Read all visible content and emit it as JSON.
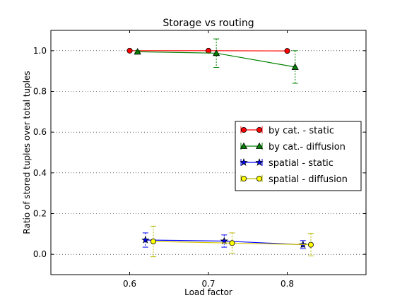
{
  "chart_data": {
    "type": "line",
    "title": "Storage vs routing",
    "xlabel": "Load factor",
    "ylabel": "Ratio of stored tuples over total tuples",
    "xlim": [
      0.5,
      0.9
    ],
    "ylim": [
      -0.1,
      1.1
    ],
    "xticks": [
      0.6,
      0.7,
      0.8
    ],
    "xtick_labels": [
      "0.6",
      "0.7",
      "0.8"
    ],
    "yticks": [
      0.0,
      0.2,
      0.4,
      0.6,
      0.8,
      1.0
    ],
    "ytick_labels": [
      "0.0",
      "0.2",
      "0.4",
      "0.6",
      "0.8",
      "1.0"
    ],
    "grid": "horizontal dotted",
    "legend_position": "center-right",
    "series": [
      {
        "name": "by cat. - static",
        "color": "#ff0000",
        "marker": "circle",
        "x": [
          0.6,
          0.7,
          0.8
        ],
        "y": [
          1.0,
          1.0,
          0.999
        ],
        "err": [
          0.002,
          0.002,
          0.002
        ]
      },
      {
        "name": "by cat.- diffusion",
        "color": "#008000",
        "marker": "triangle",
        "x": [
          0.61,
          0.71,
          0.81
        ],
        "y": [
          0.995,
          0.988,
          0.92
        ],
        "err": [
          0.005,
          0.07,
          0.08
        ]
      },
      {
        "name": "spatial - static",
        "color": "#0000ff",
        "marker": "star",
        "x": [
          0.62,
          0.72,
          0.82
        ],
        "y": [
          0.07,
          0.065,
          0.047
        ],
        "err": [
          0.035,
          0.03,
          0.02
        ]
      },
      {
        "name": "spatial - diffusion",
        "color": "#ffff00",
        "marker": "circle",
        "x": [
          0.63,
          0.73,
          0.83
        ],
        "y": [
          0.063,
          0.055,
          0.047
        ],
        "err": [
          0.075,
          0.05,
          0.055
        ]
      }
    ]
  }
}
